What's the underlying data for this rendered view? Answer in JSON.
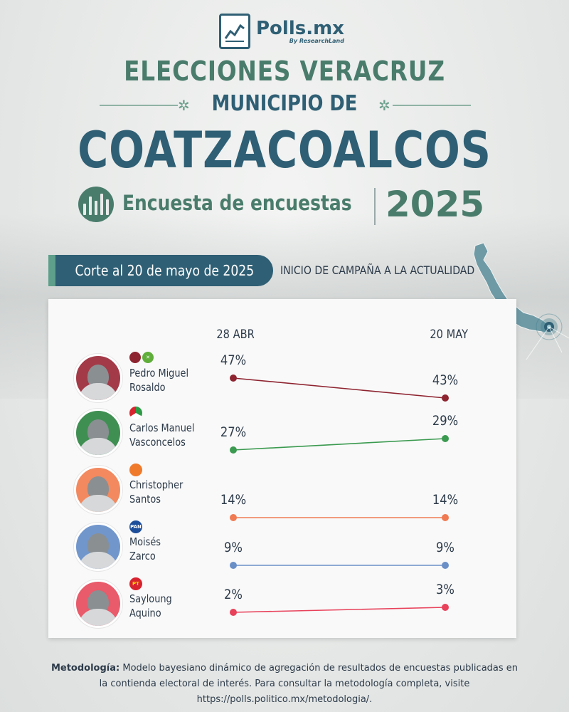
{
  "brand": {
    "name": "Polls.mx",
    "sub": "By ResearchLand"
  },
  "header": {
    "title_1": "ELECCIONES VERACRUZ",
    "title_2": "MUNICIPIO DE",
    "title_3": "COATZACOALCOS",
    "subtitle": "Encuesta de encuestas",
    "year": "2025"
  },
  "banner": {
    "label": "Corte al 20 de mayo de 2025",
    "right_text": "INICIO DE CAMPAÑA A LA ACTUALIDAD"
  },
  "colors": {
    "primary": "#2f5f74",
    "accent": "#4a7c6c",
    "morena": "#8e2430",
    "pri": "#3a9a4f",
    "mc": "#f07a52",
    "pan": "#6a8fc7",
    "pt": "#e8415a"
  },
  "chart_data": {
    "type": "line",
    "x": [
      "28 ABR",
      "20 MAY"
    ],
    "series": [
      {
        "name": "Pedro Miguel Rosaldo",
        "name_line1": "Pedro Miguel",
        "name_line2": "Rosaldo",
        "party": "morena-pvem",
        "values": [
          47,
          43
        ],
        "labels": [
          "47%",
          "43%"
        ],
        "color": "#8e2430",
        "avatar_bg": "#a33a48"
      },
      {
        "name": "Carlos Manuel Vasconcelos",
        "name_line1": "Carlos Manuel",
        "name_line2": "Vasconcelos",
        "party": "pri",
        "values": [
          27,
          29
        ],
        "labels": [
          "27%",
          "29%"
        ],
        "color": "#3a9a4f",
        "avatar_bg": "#3f8f52"
      },
      {
        "name": "Christopher Santos",
        "name_line1": "Christopher",
        "name_line2": "Santos",
        "party": "mc",
        "values": [
          14,
          14
        ],
        "labels": [
          "14%",
          "14%"
        ],
        "color": "#f07a52",
        "avatar_bg": "#f2895f"
      },
      {
        "name": "Moisés Zarco",
        "name_line1": "Moisés",
        "name_line2": "Zarco",
        "party": "pan",
        "values": [
          9,
          9
        ],
        "labels": [
          "9%",
          "9%"
        ],
        "color": "#6a8fc7",
        "avatar_bg": "#7196cc"
      },
      {
        "name": "Sayloung Aquino",
        "name_line1": "Sayloung",
        "name_line2": "Aquino",
        "party": "pt",
        "values": [
          2,
          3
        ],
        "labels": [
          "2%",
          "3%"
        ],
        "color": "#e8415a",
        "avatar_bg": "#e95a6a"
      }
    ],
    "party_labels": {
      "pan": "PAN",
      "pt": "PT",
      "pri": "PRI"
    }
  },
  "methodology": {
    "label": "Metodología:",
    "text": " Modelo bayesiano dinámico de agregación de resultados de encuestas publicadas en la contienda electoral de interés. Para consultar la metodología completa, visite https://polls.politico.mx/metodologia/."
  }
}
